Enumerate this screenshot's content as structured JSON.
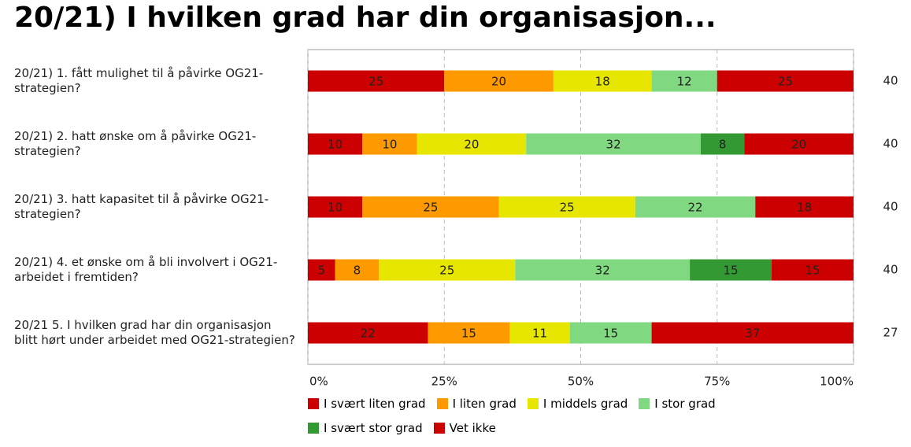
{
  "chart_data": {
    "type": "stacked-bar-horizontal",
    "title": "20/21) I hvilken grad har din organisasjon...",
    "categories": [
      "20/21) 1. fått mulighet til å påvirke OG21-strategien?",
      "20/21) 2. hatt ønske om å påvirke OG21-strategien?",
      "20/21) 3. hatt kapasitet til å påvirke OG21-strategien?",
      "20/21) 4. et ønske om å bli involvert i OG21-arbeidet i fremtiden?",
      "20/21 5. I hvilken grad har din organisasjon blitt hørt under arbeidet med OG21-strategien?"
    ],
    "counts": [
      40,
      40,
      40,
      40,
      27
    ],
    "series": [
      {
        "name": "I svært liten grad",
        "color": "#cc0000",
        "values": [
          25,
          10,
          10,
          5,
          22
        ]
      },
      {
        "name": "I liten grad",
        "color": "#ff9900",
        "values": [
          20,
          10,
          25,
          8,
          15
        ]
      },
      {
        "name": "I middels grad",
        "color": "#e6e600",
        "values": [
          18,
          20,
          25,
          25,
          11
        ]
      },
      {
        "name": "I stor grad",
        "color": "#80d880",
        "values": [
          12,
          32,
          22,
          32,
          15
        ]
      },
      {
        "name": "I svært stor grad",
        "color": "#339933",
        "values": [
          null,
          8,
          null,
          15,
          null
        ]
      },
      {
        "name": "Vet ikke",
        "color": "#cc0000",
        "values": [
          25,
          20,
          18,
          15,
          37
        ]
      }
    ],
    "xlim": [
      0,
      100
    ],
    "xticks": [
      {
        "value": 0,
        "label": "0%"
      },
      {
        "value": 25,
        "label": "25%"
      },
      {
        "value": 50,
        "label": "50%"
      },
      {
        "value": 75,
        "label": "75%"
      },
      {
        "value": 100,
        "label": "100%"
      }
    ],
    "grid": true
  }
}
